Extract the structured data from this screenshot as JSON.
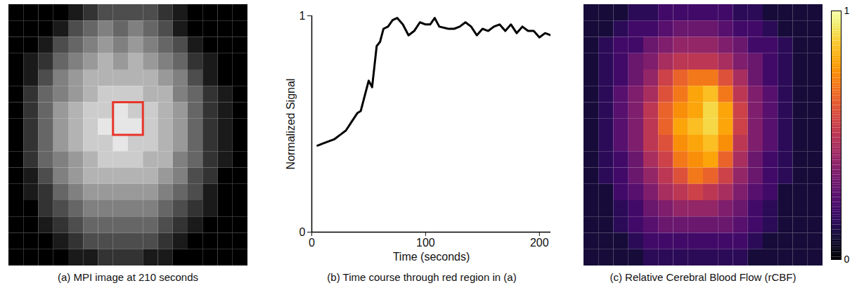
{
  "chart_data": [
    {
      "type": "heatmap",
      "title": "(a) MPI image at 210 seconds",
      "color": "gray",
      "color_range": [
        0,
        1
      ],
      "tick_labels": false,
      "region": {
        "x": [
          7,
          9
        ],
        "y": [
          6,
          8
        ]
      },
      "cells": [
        [
          0,
          0,
          0,
          0,
          0.1,
          0.2,
          0.3,
          0.3,
          0.3,
          0.3,
          0.2,
          0.1,
          0,
          0,
          0,
          0
        ],
        [
          0,
          0,
          0,
          0.1,
          0.3,
          0.4,
          0.5,
          0.4,
          0.5,
          0.4,
          0.3,
          0.1,
          0,
          0,
          0,
          0
        ],
        [
          0,
          0,
          0.1,
          0.3,
          0.4,
          0.5,
          0.6,
          0.5,
          0.6,
          0.5,
          0.4,
          0.3,
          0.1,
          0,
          0,
          0
        ],
        [
          0,
          0.1,
          0.2,
          0.4,
          0.5,
          0.6,
          0.7,
          0.6,
          0.7,
          0.6,
          0.5,
          0.4,
          0.2,
          0.1,
          0,
          0
        ],
        [
          0,
          0.1,
          0.3,
          0.5,
          0.6,
          0.7,
          0.7,
          0.7,
          0.7,
          0.7,
          0.6,
          0.5,
          0.3,
          0.1,
          0,
          0
        ],
        [
          0,
          0.2,
          0.4,
          0.5,
          0.6,
          0.7,
          0.8,
          0.8,
          0.8,
          0.7,
          0.7,
          0.5,
          0.4,
          0.2,
          0.1,
          0
        ],
        [
          0,
          0.2,
          0.4,
          0.6,
          0.7,
          0.8,
          0.8,
          0.9,
          0.8,
          0.8,
          0.7,
          0.6,
          0.4,
          0.2,
          0.1,
          0
        ],
        [
          0,
          0.2,
          0.4,
          0.6,
          0.7,
          0.8,
          0.9,
          0.9,
          0.9,
          0.8,
          0.7,
          0.6,
          0.4,
          0.2,
          0.1,
          0
        ],
        [
          0,
          0.2,
          0.4,
          0.6,
          0.7,
          0.8,
          0.8,
          0.9,
          0.8,
          0.8,
          0.7,
          0.6,
          0.4,
          0.2,
          0.1,
          0
        ],
        [
          0,
          0.2,
          0.4,
          0.5,
          0.6,
          0.7,
          0.8,
          0.8,
          0.8,
          0.7,
          0.7,
          0.5,
          0.4,
          0.2,
          0.1,
          0
        ],
        [
          0,
          0.1,
          0.3,
          0.5,
          0.6,
          0.7,
          0.7,
          0.7,
          0.7,
          0.7,
          0.6,
          0.5,
          0.3,
          0.2,
          0,
          0
        ],
        [
          0,
          0.1,
          0.2,
          0.4,
          0.5,
          0.6,
          0.6,
          0.6,
          0.6,
          0.6,
          0.5,
          0.4,
          0.3,
          0.1,
          0,
          0
        ],
        [
          0,
          0,
          0.2,
          0.3,
          0.4,
          0.5,
          0.5,
          0.5,
          0.5,
          0.5,
          0.4,
          0.3,
          0.2,
          0.1,
          0,
          0
        ],
        [
          0,
          0,
          0.1,
          0.2,
          0.3,
          0.4,
          0.4,
          0.4,
          0.4,
          0.4,
          0.3,
          0.2,
          0.1,
          0,
          0,
          0
        ],
        [
          0,
          0,
          0,
          0.1,
          0.2,
          0.3,
          0.3,
          0.3,
          0.3,
          0.3,
          0.2,
          0.1,
          0,
          0,
          0,
          0
        ],
        [
          0,
          0,
          0,
          0,
          0.1,
          0.1,
          0.2,
          0.2,
          0.2,
          0.1,
          0.1,
          0,
          0,
          0,
          0,
          0
        ]
      ]
    },
    {
      "type": "line",
      "title": "(b) Time course through red region in (a)",
      "xlabel": "Time (seconds)",
      "ylabel": "Normalized Signal",
      "xlim": [
        0,
        210
      ],
      "xticks": [
        0,
        100,
        200
      ],
      "ylim": [
        0,
        1
      ],
      "yticks": [
        0,
        1
      ],
      "x": [
        5,
        10,
        15,
        20,
        25,
        30,
        35,
        40,
        43,
        47,
        50,
        53,
        57,
        60,
        63,
        67,
        71,
        75,
        80,
        85,
        90,
        95,
        100,
        104,
        108,
        112,
        120,
        125,
        130,
        135,
        140,
        145,
        150,
        155,
        160,
        165,
        170,
        175,
        180,
        185,
        190,
        195,
        200,
        205,
        210
      ],
      "series": [
        {
          "color": "#000000",
          "values": [
            0.4,
            0.41,
            0.42,
            0.43,
            0.45,
            0.47,
            0.51,
            0.55,
            0.56,
            0.64,
            0.7,
            0.67,
            0.86,
            0.88,
            0.94,
            0.95,
            0.98,
            0.99,
            0.96,
            0.91,
            0.93,
            0.97,
            0.96,
            0.96,
            0.99,
            0.95,
            0.94,
            0.94,
            0.95,
            0.97,
            0.95,
            0.91,
            0.94,
            0.93,
            0.95,
            0.96,
            0.93,
            0.96,
            0.92,
            0.95,
            0.93,
            0.93,
            0.9,
            0.92,
            0.91
          ]
        }
      ]
    },
    {
      "type": "heatmap",
      "title": "(c) Relative Cerebral Blood Flow (rCBF)",
      "color": "inferno",
      "tick_labels": false,
      "colorbar": {
        "range": [
          0,
          1
        ],
        "ticks": [
          0,
          1
        ]
      },
      "cells": [
        [
          0.1,
          0.1,
          0.1,
          0.15,
          0.15,
          0.2,
          0.2,
          0.2,
          0.2,
          0.2,
          0.15,
          0.15,
          0.1,
          0.1,
          0.1,
          0.1
        ],
        [
          0.1,
          0.1,
          0.15,
          0.2,
          0.2,
          0.25,
          0.3,
          0.3,
          0.3,
          0.25,
          0.2,
          0.2,
          0.15,
          0.1,
          0.1,
          0.1
        ],
        [
          0.1,
          0.15,
          0.2,
          0.2,
          0.3,
          0.35,
          0.4,
          0.4,
          0.4,
          0.35,
          0.3,
          0.2,
          0.2,
          0.15,
          0.1,
          0.1
        ],
        [
          0.1,
          0.15,
          0.2,
          0.3,
          0.35,
          0.45,
          0.5,
          0.5,
          0.5,
          0.45,
          0.35,
          0.3,
          0.2,
          0.15,
          0.1,
          0.1
        ],
        [
          0.1,
          0.15,
          0.2,
          0.3,
          0.4,
          0.55,
          0.65,
          0.7,
          0.7,
          0.6,
          0.45,
          0.3,
          0.2,
          0.15,
          0.1,
          0.1
        ],
        [
          0.1,
          0.15,
          0.25,
          0.35,
          0.45,
          0.6,
          0.7,
          0.8,
          0.85,
          0.7,
          0.5,
          0.35,
          0.25,
          0.15,
          0.1,
          0.1
        ],
        [
          0.1,
          0.15,
          0.25,
          0.35,
          0.5,
          0.65,
          0.75,
          0.8,
          0.9,
          0.8,
          0.55,
          0.35,
          0.25,
          0.15,
          0.1,
          0.1
        ],
        [
          0.1,
          0.15,
          0.25,
          0.35,
          0.5,
          0.65,
          0.8,
          0.85,
          0.9,
          0.8,
          0.55,
          0.35,
          0.25,
          0.15,
          0.1,
          0.1
        ],
        [
          0.1,
          0.15,
          0.25,
          0.35,
          0.5,
          0.6,
          0.75,
          0.8,
          0.85,
          0.75,
          0.5,
          0.35,
          0.25,
          0.15,
          0.1,
          0.1
        ],
        [
          0.1,
          0.15,
          0.2,
          0.3,
          0.45,
          0.55,
          0.7,
          0.75,
          0.8,
          0.65,
          0.45,
          0.3,
          0.2,
          0.15,
          0.1,
          0.1
        ],
        [
          0.1,
          0.15,
          0.2,
          0.3,
          0.4,
          0.5,
          0.6,
          0.7,
          0.65,
          0.55,
          0.4,
          0.3,
          0.2,
          0.15,
          0.1,
          0.1
        ],
        [
          0.1,
          0.1,
          0.2,
          0.25,
          0.35,
          0.45,
          0.5,
          0.55,
          0.5,
          0.45,
          0.35,
          0.25,
          0.2,
          0.1,
          0.1,
          0.1
        ],
        [
          0.1,
          0.1,
          0.15,
          0.2,
          0.3,
          0.35,
          0.4,
          0.4,
          0.4,
          0.35,
          0.3,
          0.2,
          0.15,
          0.1,
          0.1,
          0.1
        ],
        [
          0.1,
          0.1,
          0.15,
          0.2,
          0.25,
          0.3,
          0.3,
          0.3,
          0.3,
          0.3,
          0.25,
          0.2,
          0.15,
          0.1,
          0.1,
          0.1
        ],
        [
          0.1,
          0.1,
          0.1,
          0.15,
          0.2,
          0.2,
          0.2,
          0.2,
          0.2,
          0.2,
          0.2,
          0.15,
          0.1,
          0.1,
          0.1,
          0.1
        ],
        [
          0.1,
          0.1,
          0.1,
          0.1,
          0.15,
          0.15,
          0.15,
          0.15,
          0.15,
          0.15,
          0.15,
          0.1,
          0.1,
          0.1,
          0.1,
          0.1
        ]
      ]
    }
  ]
}
